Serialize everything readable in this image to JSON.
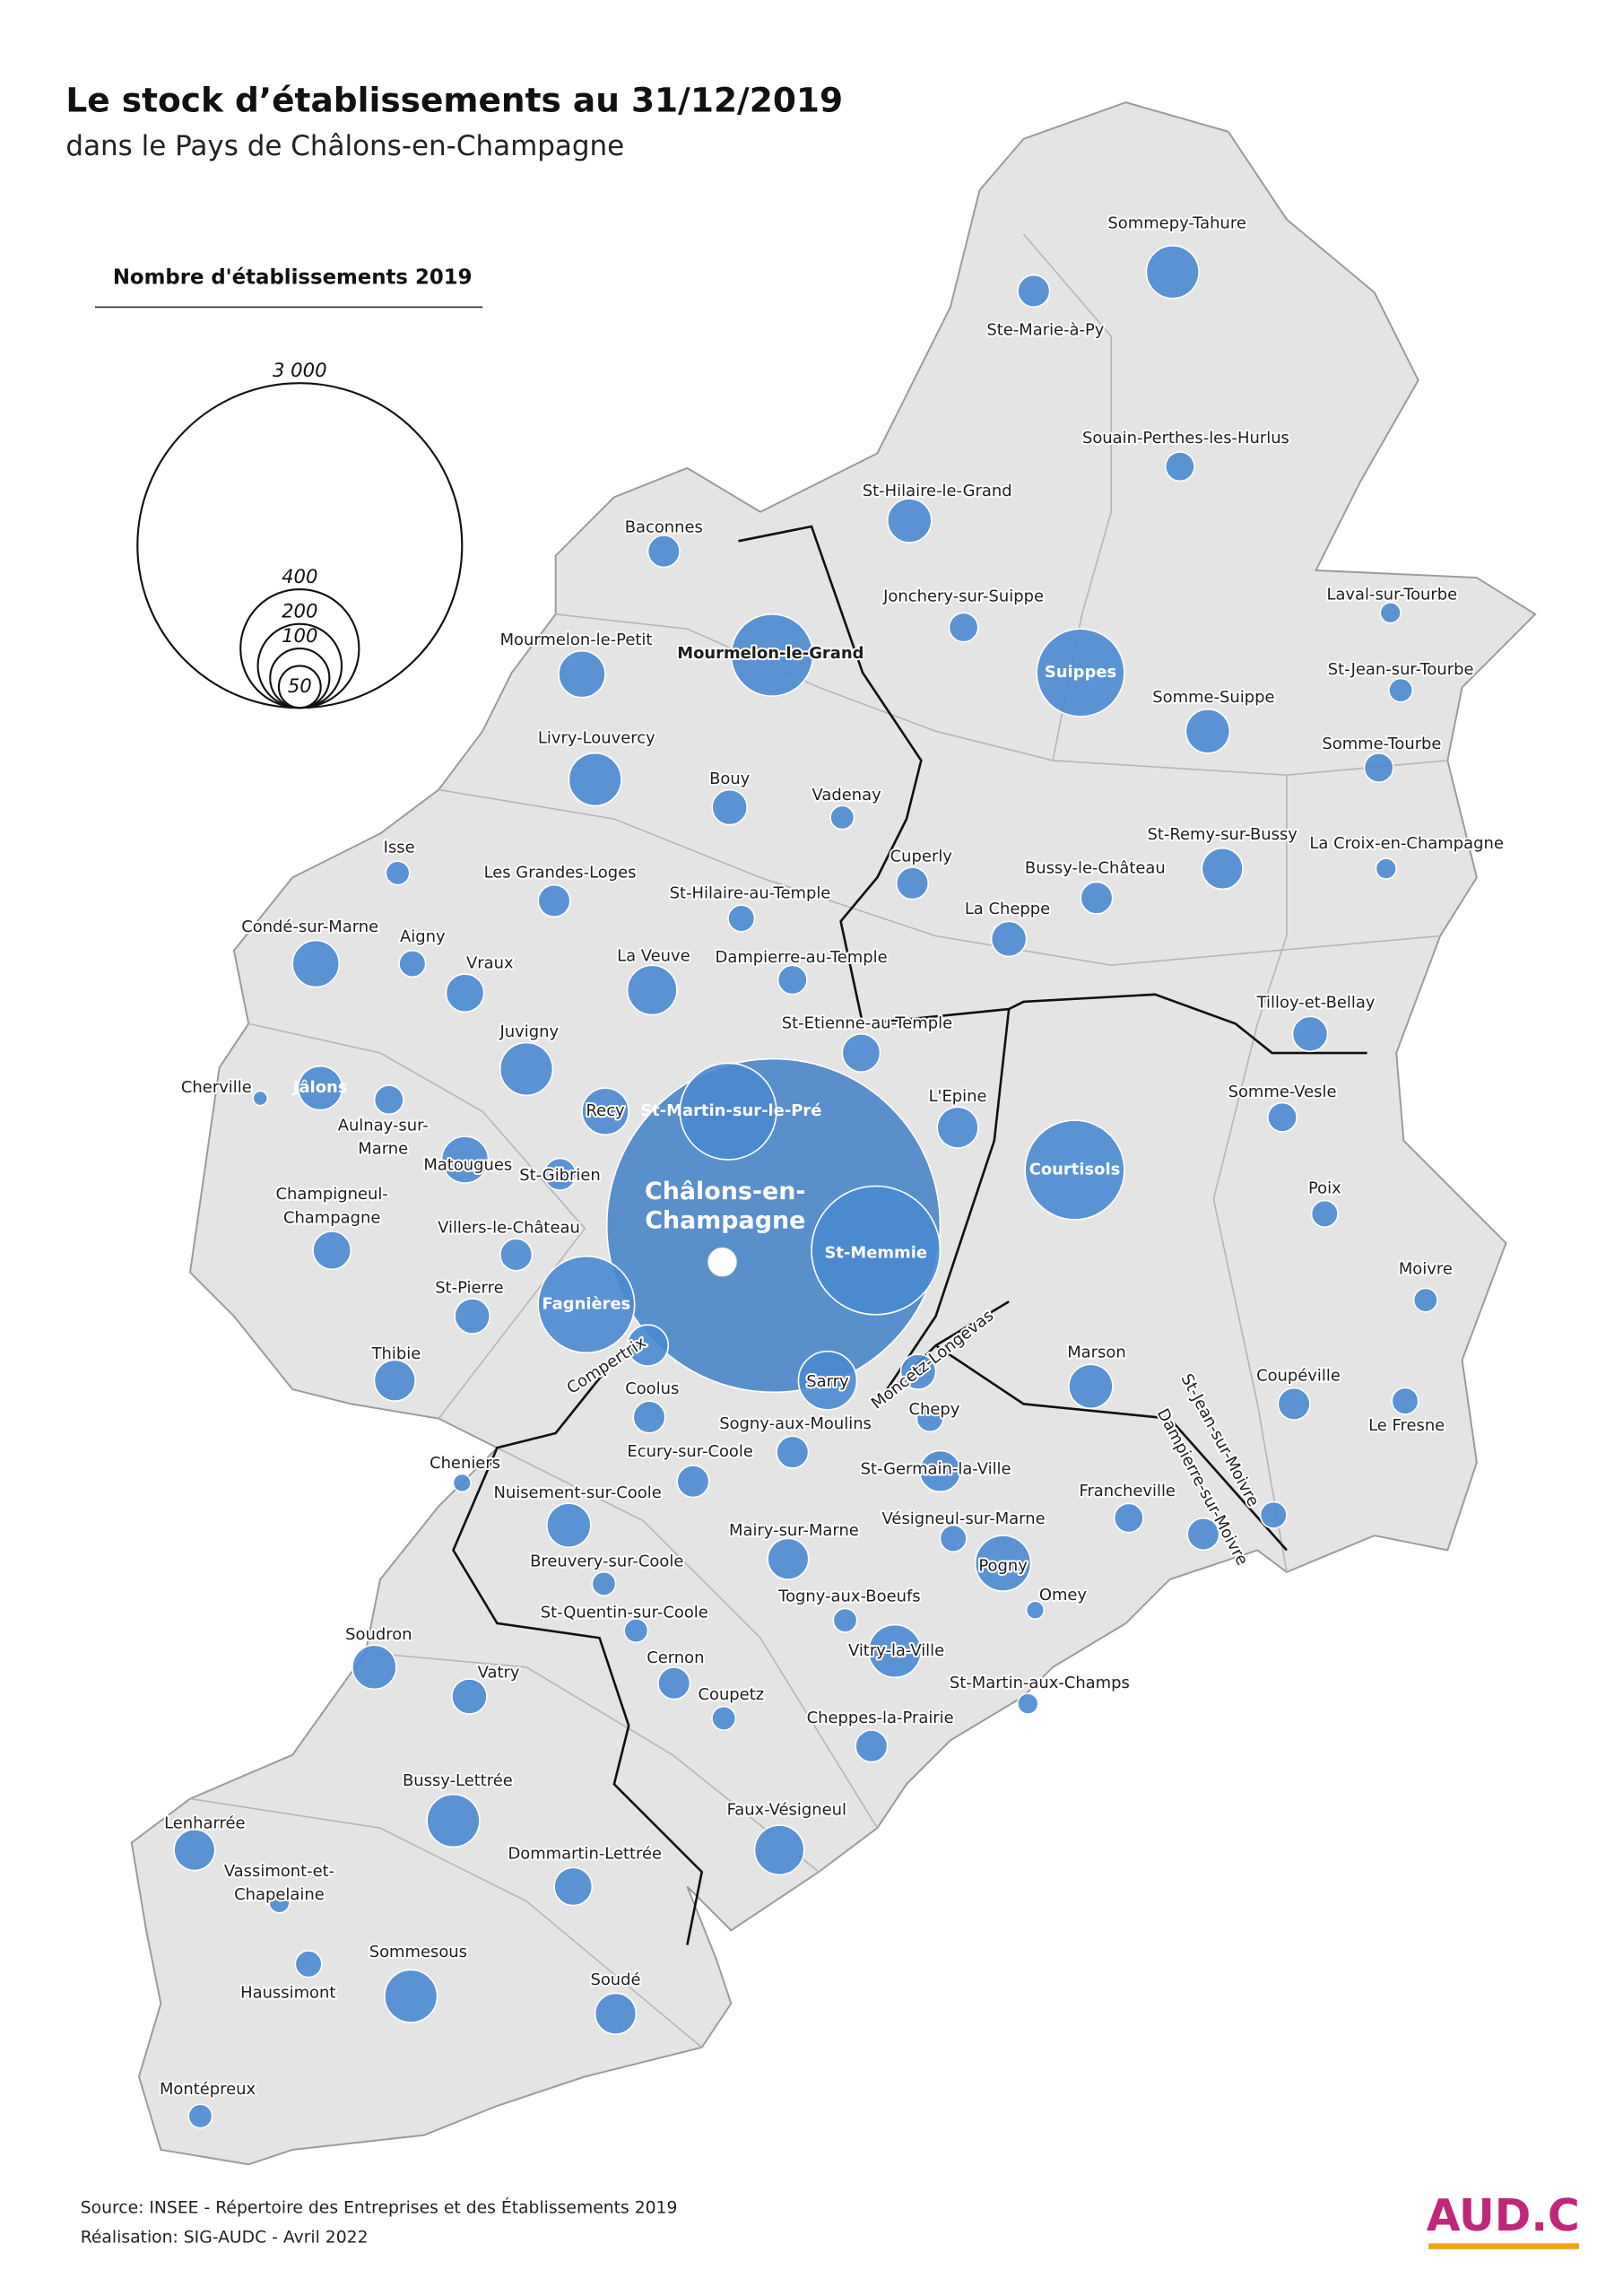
{
  "title": "Le stock d’établissements au 31/12/2019",
  "subtitle": "dans le Pays de Châlons-en-Champagne",
  "legend": {
    "title": "Nombre d'établissements 2019",
    "values": [
      {
        "value": 3000,
        "label": "3 000"
      },
      400,
      200,
      100,
      50
    ]
  },
  "communes": [
    {
      "name": [
        "Châlons-en-",
        "Champagne"
      ],
      "count": 3164
    },
    {
      "name": "Sommepy-Tahure",
      "count": 79
    },
    {
      "name": "Ste-Marie-à-Py",
      "count": 29
    },
    {
      "name": "Souain-Perthes-les-Hurlus",
      "count": 24
    },
    {
      "name": "St-Hilaire-le-Grand",
      "count": 55
    },
    {
      "name": "Baconnes",
      "count": 29
    },
    {
      "name": "Jonchery-sur-Suippe",
      "count": 24
    },
    {
      "name": "Laval-sur-Tourbe",
      "count": 12
    },
    {
      "name": "Mourmelon-le-Grand",
      "count": 191
    },
    {
      "name": "Suippes",
      "count": 219
    },
    {
      "name": "Mourmelon-le-Petit",
      "count": 62
    },
    {
      "name": "St-Jean-sur-Tourbe",
      "count": 16
    },
    {
      "name": "Somme-Suippe",
      "count": 55
    },
    {
      "name": "Livry-Louvercy",
      "count": 79
    },
    {
      "name": "Somme-Tourbe",
      "count": 24
    },
    {
      "name": "Bouy",
      "count": 35
    },
    {
      "name": "Vadenay",
      "count": 16
    },
    {
      "name": "La Croix-en-Champagne",
      "count": 12
    },
    {
      "name": "St-Remy-sur-Bussy",
      "count": 48
    },
    {
      "name": "Isse",
      "count": 16
    },
    {
      "name": "Cuperly",
      "count": 29
    },
    {
      "name": "Bussy-le-Château",
      "count": 29
    },
    {
      "name": "Les Grandes-Loges",
      "count": 29
    },
    {
      "name": "St-Hilaire-au-Temple",
      "count": 20
    },
    {
      "name": "La Cheppe",
      "count": 35
    },
    {
      "name": "Condé-sur-Marne",
      "count": 62
    },
    {
      "name": "Aigny",
      "count": 20
    },
    {
      "name": "Dampierre-au-Temple",
      "count": 24
    },
    {
      "name": "Vraux",
      "count": 41
    },
    {
      "name": "La Veuve",
      "count": 70
    },
    {
      "name": "Tilloy-et-Bellay",
      "count": 35
    },
    {
      "name": "St-Etienne-au-Temple",
      "count": 41
    },
    {
      "name": "Juvigny",
      "count": 79
    },
    {
      "name": "Somme-Vesle",
      "count": 24
    },
    {
      "name": "Cherville",
      "count": 6
    },
    {
      "name": "Jâlons",
      "count": 55
    },
    {
      "name": [
        "Aulnay-sur-",
        "Marne"
      ],
      "count": 24
    },
    {
      "name": "Recy",
      "count": 62
    },
    {
      "name": "St-Martin-sur-le-Pré",
      "count": 265
    },
    {
      "name": "L'Epine",
      "count": 48
    },
    {
      "name": "Courtisols",
      "count": 281
    },
    {
      "name": "Matougues",
      "count": 62
    },
    {
      "name": "St-Gibrien",
      "count": 29
    },
    {
      "name": "Poix",
      "count": 20
    },
    {
      "name": [
        "Champigneul-",
        "Champagne"
      ],
      "count": 41
    },
    {
      "name": "St-Memmie",
      "count": 471
    },
    {
      "name": "Villers-le-Château",
      "count": 29
    },
    {
      "name": "Moivre",
      "count": 16
    },
    {
      "name": "St-Pierre",
      "count": 35
    },
    {
      "name": "Fagnières",
      "count": 265
    },
    {
      "name": "Compertrix",
      "count": 48
    },
    {
      "name": "Thibie",
      "count": 48
    },
    {
      "name": "Marson",
      "count": 55
    },
    {
      "name": "Sarry",
      "count": 97
    },
    {
      "name": "Moncetz-Longevas",
      "count": 35
    },
    {
      "name": "Coupéville",
      "count": 29
    },
    {
      "name": "Le Fresne",
      "count": 20
    },
    {
      "name": "Chepy",
      "count": 20
    },
    {
      "name": "Coolus",
      "count": 29
    },
    {
      "name": "Sogny-aux-Moulins",
      "count": 29
    },
    {
      "name": "Ecury-sur-Coole",
      "count": 29
    },
    {
      "name": "St-Germain-la-Ville",
      "count": 48
    },
    {
      "name": "St-Jean-sur-Moivre",
      "count": 20
    },
    {
      "name": "Dampierre-sur-Moivre",
      "count": 29
    },
    {
      "name": "Cheniers",
      "count": 9
    },
    {
      "name": "Nuisement-sur-Coole",
      "count": 55
    },
    {
      "name": "Francheville",
      "count": 24
    },
    {
      "name": "Vésigneul-sur-Marne",
      "count": 20
    },
    {
      "name": "Mairy-sur-Marne",
      "count": 48
    },
    {
      "name": "Pogny",
      "count": 88
    },
    {
      "name": "Breuvery-sur-Coole",
      "count": 16
    },
    {
      "name": "Omey",
      "count": 9
    },
    {
      "name": "Togny-aux-Boeufs",
      "count": 16
    },
    {
      "name": "St-Quentin-sur-Coole",
      "count": 16
    },
    {
      "name": "Soudron",
      "count": 55
    },
    {
      "name": "Vitry-la-Ville",
      "count": 79
    },
    {
      "name": "Cernon",
      "count": 29
    },
    {
      "name": "Vatry",
      "count": 35
    },
    {
      "name": "St-Martin-aux-Champs",
      "count": 12
    },
    {
      "name": "Coupetz",
      "count": 16
    },
    {
      "name": "Cheppes-la-Prairie",
      "count": 29
    },
    {
      "name": "Bussy-Lettrée",
      "count": 79
    },
    {
      "name": "Faux-Vésigneul",
      "count": 70
    },
    {
      "name": "Lenharrée",
      "count": 48
    },
    {
      "name": "Dommartin-Lettrée",
      "count": 41
    },
    {
      "name": [
        "Vassimont-et-",
        "Chapelaine"
      ],
      "count": 12
    },
    {
      "name": "Haussimont",
      "count": 20
    },
    {
      "name": "Sommesous",
      "count": 79
    },
    {
      "name": "Soudé",
      "count": 48
    },
    {
      "name": "Montépreux",
      "count": 16
    }
  ],
  "source": "Source: INSEE - Répertoire des Entreprises et des Établissements 2019",
  "credit": "Réalisation: SIG-AUDC - Avril 2022",
  "logo": "AUD.C"
}
